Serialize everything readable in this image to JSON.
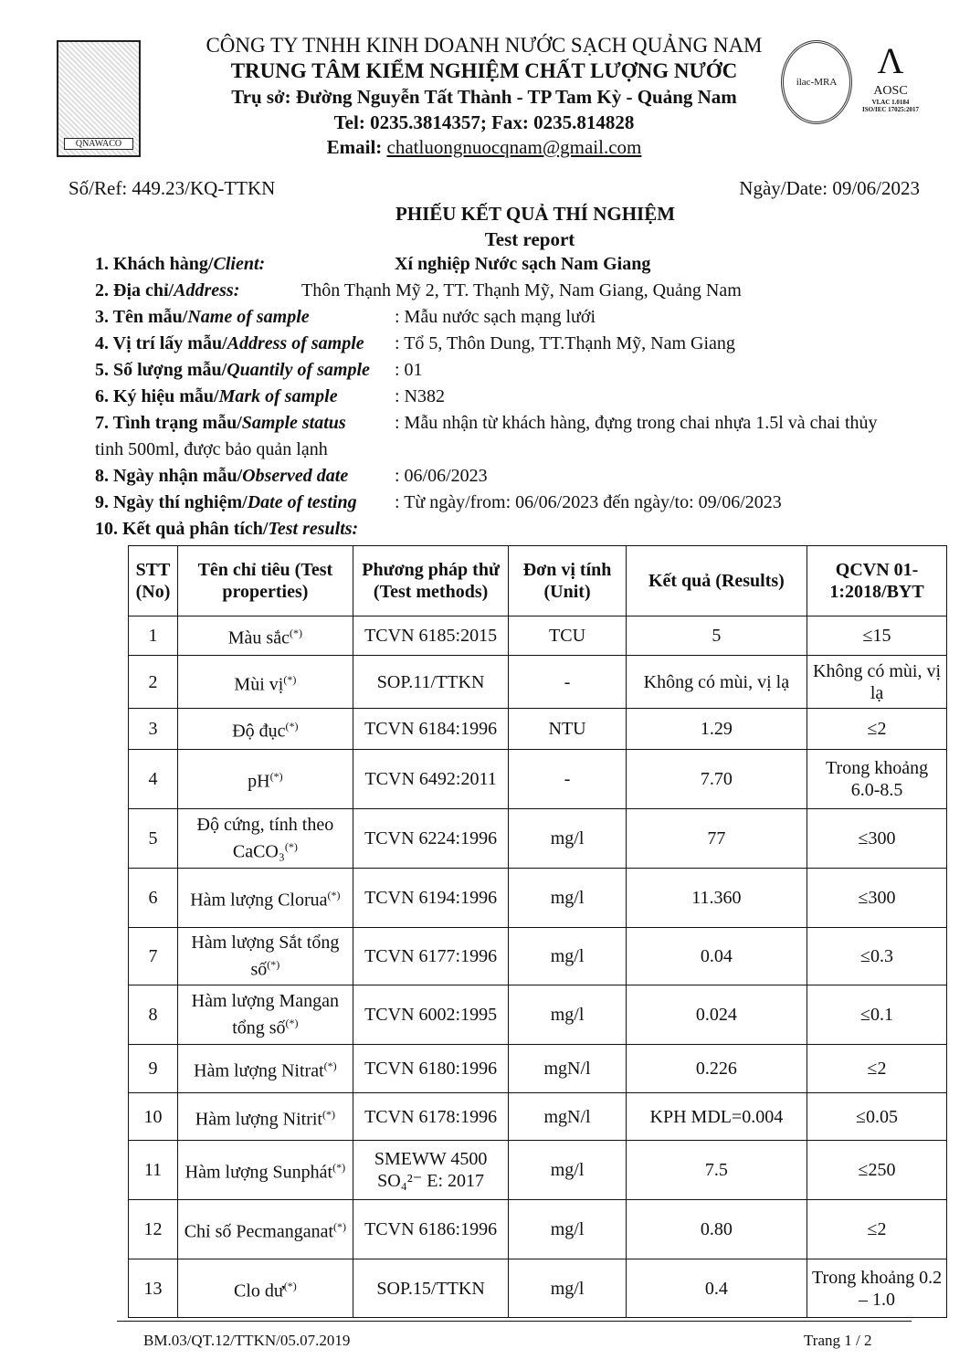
{
  "header": {
    "company": "CÔNG TY TNHH KINH DOANH NƯỚC SẠCH QUẢNG NAM",
    "center": "TRUNG TÂM KIỂM NGHIỆM CHẤT LƯỢNG NƯỚC",
    "address": "Trụ sở: Đường Nguyễn Tất Thành - TP Tam Kỳ -  Quảng Nam",
    "phone": "Tel: 0235.3814357; Fax: 0235.814828",
    "email_label": "Email:",
    "email": "chatluongnuocqnam@gmail.com",
    "logo_text": "QNAWACO",
    "ilac_text": "ilac-MRA",
    "aosc_text": "AOSC",
    "vlac": "VLAC 1.0184",
    "iso": "ISO/IEC 17025:2017"
  },
  "ref": "Số/Ref: 449.23/KQ-TTKN",
  "date": "Ngày/Date: 09/06/2023",
  "title": "PHIẾU KẾT QUẢ THÍ NGHIỆM",
  "subtitle": "Test report",
  "fields": [
    {
      "label": "1. Khách hàng/",
      "label_en": "Client:",
      "value": "Xí nghiệp Nước sạch Nam Giang"
    },
    {
      "label": "2. Địa chỉ/",
      "label_en": "Address:",
      "value": "Thôn Thạnh Mỹ 2, TT. Thạnh Mỹ, Nam Giang, Quảng Nam"
    },
    {
      "label": "3. Tên mẫu/",
      "label_en": "Name of sample",
      "value": ": Mẫu nước sạch mạng lưới"
    },
    {
      "label": "4. Vị trí lấy mẫu/",
      "label_en": "Address of sample",
      "value": ": Tổ 5, Thôn Dung, TT.Thạnh Mỹ, Nam Giang"
    },
    {
      "label": "5. Số lượng mẫu/",
      "label_en": "Quantily of sample",
      "value": ": 01"
    },
    {
      "label": "6. Ký hiệu mẫu/",
      "label_en": "Mark of sample",
      "value": ": N382"
    },
    {
      "label": "7. Tình trạng mẫu/",
      "label_en": "Sample status",
      "value": ": Mẫu nhận từ khách hàng, đựng trong chai nhựa 1.5l và chai thủy",
      "value2": "tinh 500ml, được bảo quản lạnh"
    },
    {
      "label": "8. Ngày nhận mẫu/",
      "label_en": "Observed date",
      "value": ": 06/06/2023"
    },
    {
      "label": "9. Ngày thí nghiệm/",
      "label_en": "Date of testing",
      "value": ": Từ ngày/from: 06/06/2023  đến ngày/to: 09/06/2023"
    },
    {
      "label": "10. Kết quả phân tích/",
      "label_en": "Test results:"
    }
  ],
  "table": {
    "headers": [
      "STT (No)",
      "Tên chỉ tiêu (Test properties)",
      "Phương pháp thử (Test methods)",
      "Đơn vị tính (Unit)",
      "Kết quả (Results)",
      "QCVN 01-1:2018/BYT"
    ],
    "note": "(*)",
    "rows": [
      [
        "1",
        "Màu sắc",
        "TCVN 6185:2015",
        "TCU",
        "5",
        "≤15"
      ],
      [
        "2",
        "Mùi vị",
        "SOP.11/TTKN",
        "-",
        "Không có mùi, vị lạ",
        "Không có mùi, vị lạ"
      ],
      [
        "3",
        "Độ đục",
        "TCVN 6184:1996",
        "NTU",
        "1.29",
        "≤2"
      ],
      [
        "4",
        "pH",
        "TCVN 6492:2011",
        "-",
        "7.70",
        "Trong khoảng 6.0-8.5"
      ],
      [
        "5",
        "Độ cứng, tính theo CaCO₃",
        "TCVN 6224:1996",
        "mg/l",
        "77",
        "≤300"
      ],
      [
        "6",
        "Hàm lượng Clorua",
        "TCVN 6194:1996",
        "mg/l",
        "11.360",
        "≤300"
      ],
      [
        "7",
        "Hàm lượng Sắt tổng số",
        "TCVN 6177:1996",
        "mg/l",
        "0.04",
        "≤0.3"
      ],
      [
        "8",
        "Hàm lượng Mangan tổng số",
        "TCVN 6002:1995",
        "mg/l",
        "0.024",
        "≤0.1"
      ],
      [
        "9",
        "Hàm lượng Nitrat",
        "TCVN 6180:1996",
        "mgN/l",
        "0.226",
        "≤2"
      ],
      [
        "10",
        "Hàm lượng Nitrit",
        "TCVN 6178:1996",
        "mgN/l",
        "KPH MDL=0.004",
        "≤0.05"
      ],
      [
        "11",
        "Hàm lượng Sunphát",
        "SMEWW 4500 SO₄²⁻ E: 2017",
        "mg/l",
        "7.5",
        "≤250"
      ],
      [
        "12",
        "Chỉ số Pecmanganat",
        "TCVN 6186:1996",
        "mg/l",
        "0.80",
        "≤2"
      ],
      [
        "13",
        "Clo dư",
        "SOP.15/TTKN",
        "mg/l",
        "0.4",
        "Trong khoảng 0.2 – 1.0"
      ]
    ]
  },
  "footer": {
    "form": "BM.03/QT.12/TTKN/05.07.2019",
    "page": "Trang 1 / 2"
  }
}
